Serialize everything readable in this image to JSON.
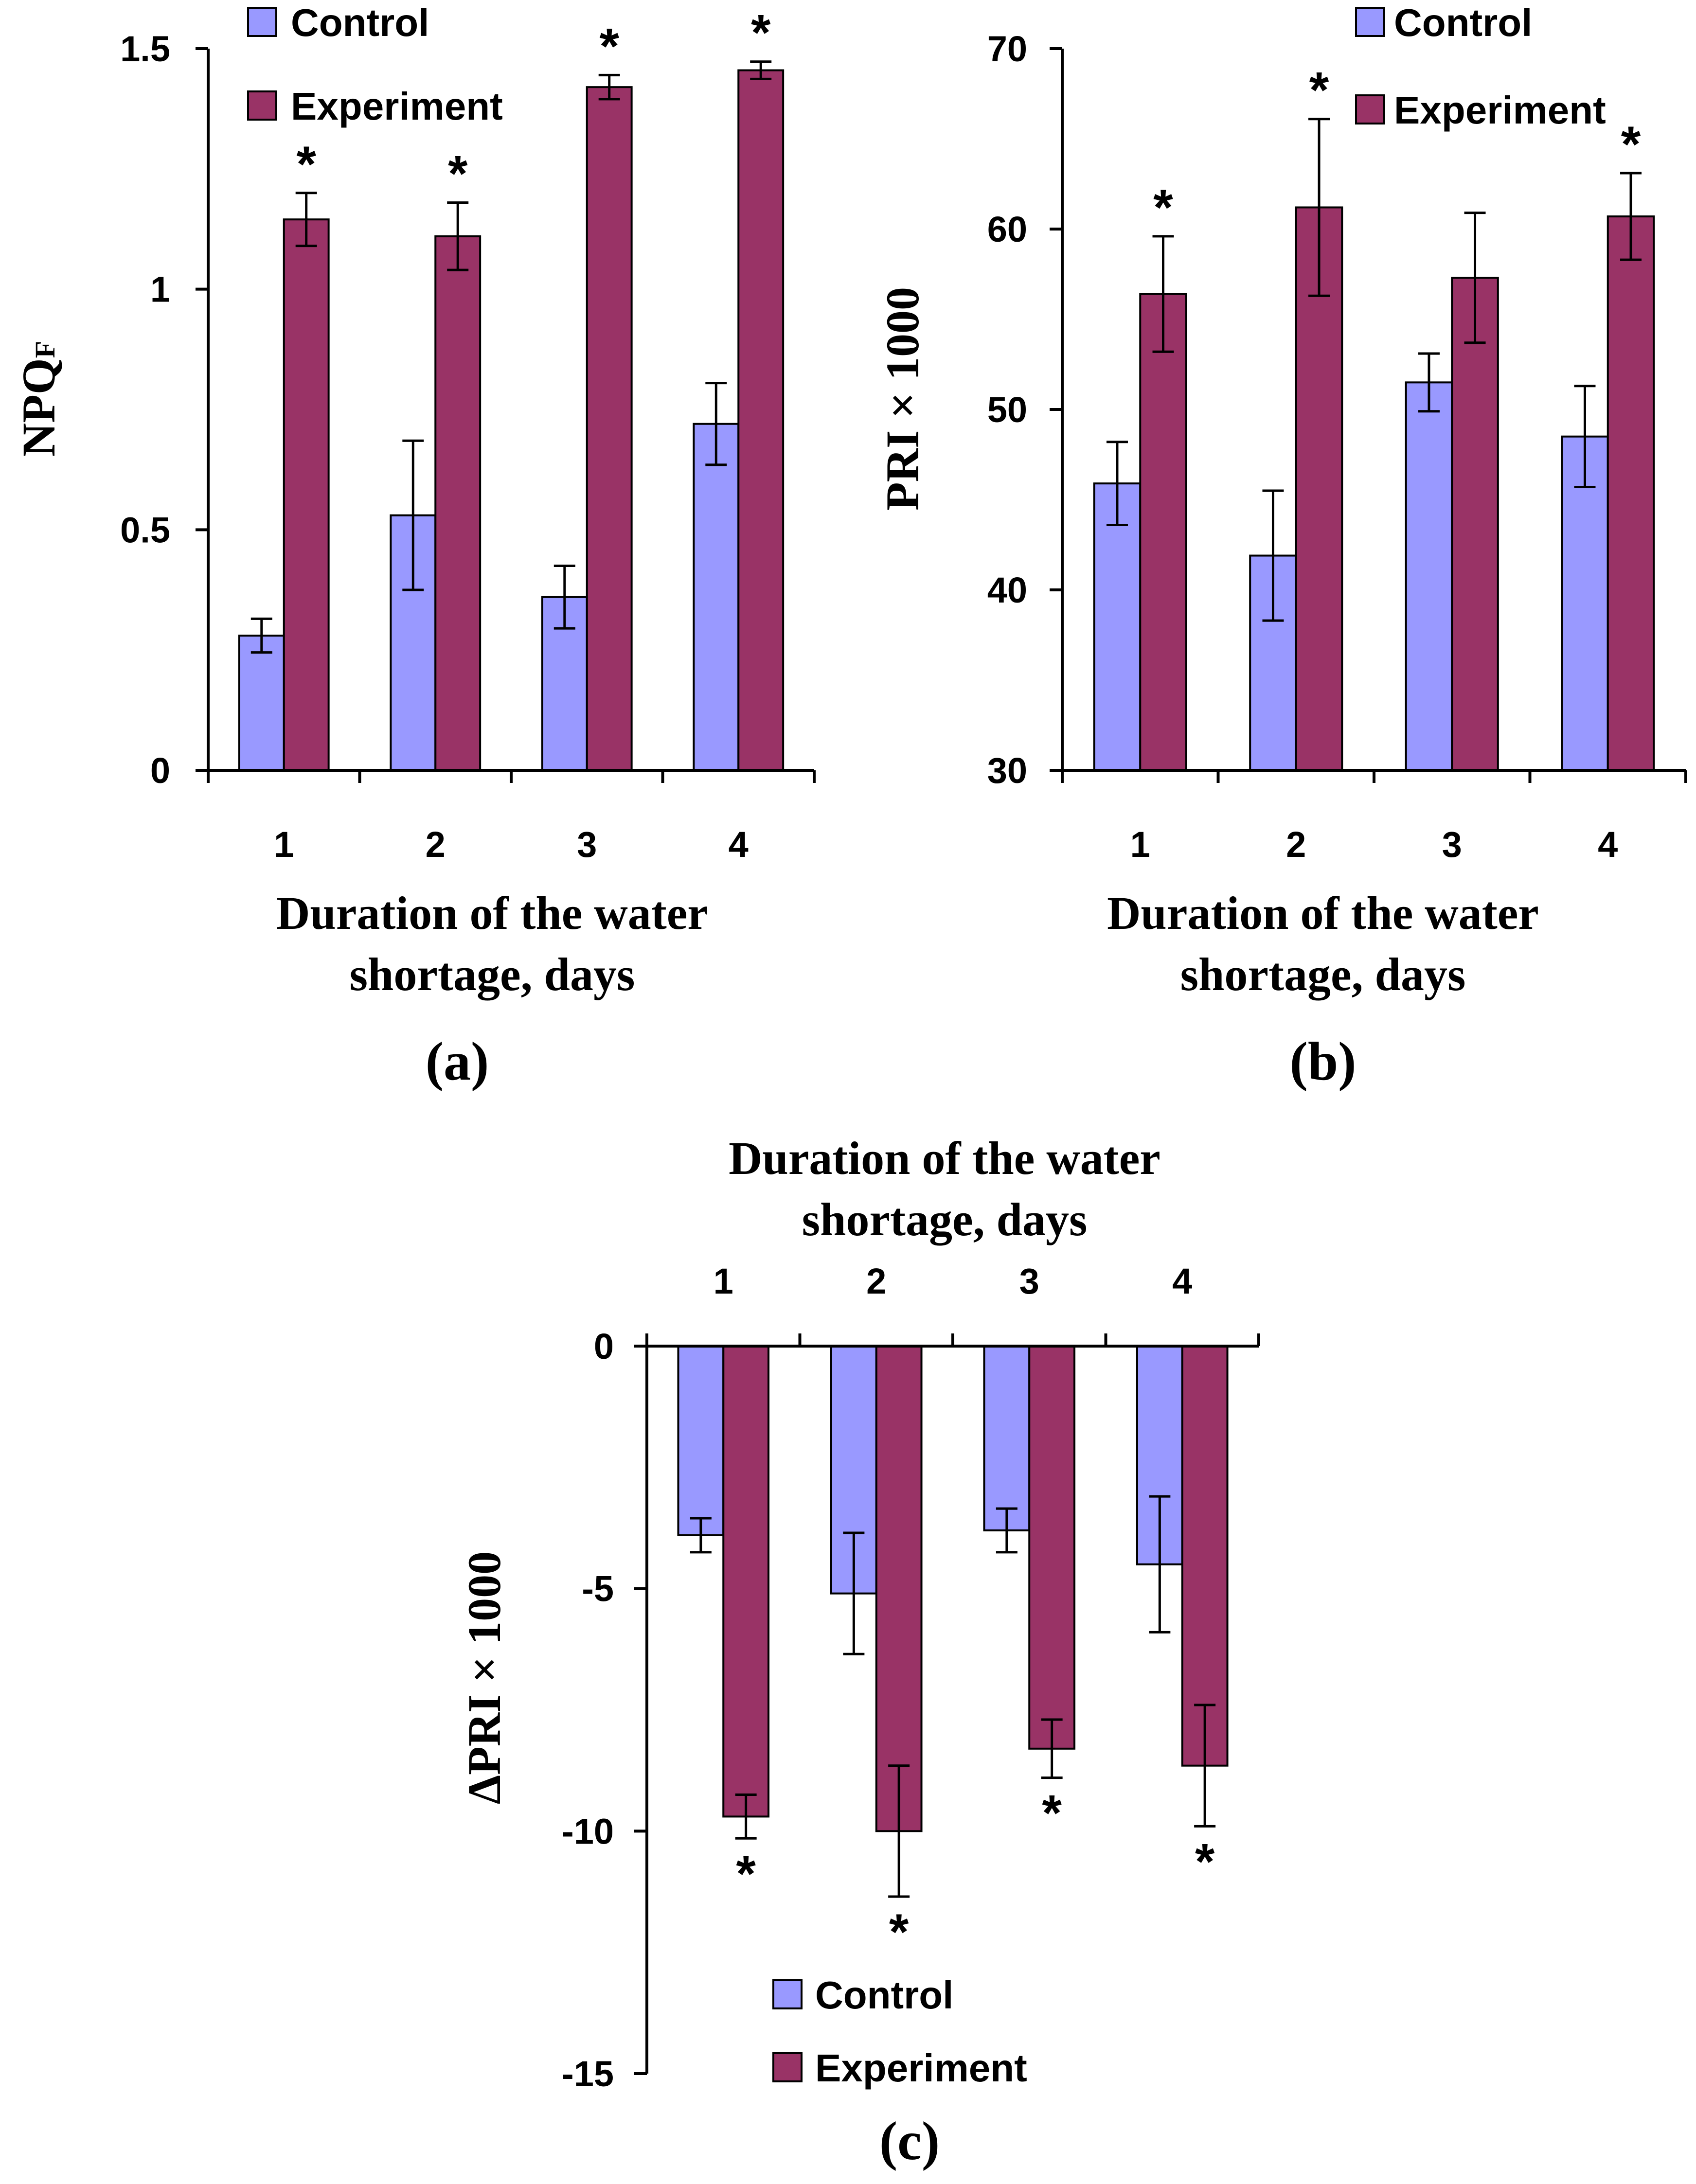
{
  "chart_data": [
    {
      "panel_label": "(a)",
      "type": "bar",
      "ylabel_main": "NPQ",
      "ylabel_sub": "F",
      "xlabel_line1": "Duration of the water",
      "xlabel_line2": "shortage, days",
      "categories": [
        "1",
        "2",
        "3",
        "4"
      ],
      "ylim": [
        0,
        1.5
      ],
      "yticks": [
        0,
        0.5,
        1,
        1.5
      ],
      "ytick_labels": [
        "0",
        "0.5",
        "1",
        "1.5"
      ],
      "legend_position": "top-left",
      "series": [
        {
          "name": "Control",
          "color": "#9999FF",
          "values": [
            0.28,
            0.53,
            0.36,
            0.72
          ],
          "errors": [
            0.035,
            0.155,
            0.065,
            0.085
          ]
        },
        {
          "name": "Experiment",
          "color": "#993366",
          "values": [
            1.145,
            1.11,
            1.42,
            1.455
          ],
          "errors": [
            0.055,
            0.07,
            0.025,
            0.018
          ]
        }
      ],
      "significance": [
        "*",
        "*",
        "*",
        "*"
      ]
    },
    {
      "panel_label": "(b)",
      "type": "bar",
      "ylabel": "PRI × 1000",
      "xlabel_line1": "Duration of the water",
      "xlabel_line2": "shortage, days",
      "categories": [
        "1",
        "2",
        "3",
        "4"
      ],
      "ylim": [
        30,
        70
      ],
      "yticks": [
        30,
        40,
        50,
        60,
        70
      ],
      "ytick_labels": [
        "30",
        "40",
        "50",
        "60",
        "70"
      ],
      "legend_position": "top-right",
      "series": [
        {
          "name": "Control",
          "color": "#9999FF",
          "values": [
            45.9,
            41.9,
            51.5,
            48.5
          ],
          "errors": [
            2.3,
            3.6,
            1.6,
            2.8
          ]
        },
        {
          "name": "Experiment",
          "color": "#993366",
          "values": [
            56.4,
            61.2,
            57.3,
            60.7
          ],
          "errors": [
            3.2,
            4.9,
            3.6,
            2.4
          ]
        }
      ],
      "significance": [
        "*",
        "*",
        "",
        "*"
      ]
    },
    {
      "panel_label": "(c)",
      "type": "bar",
      "ylabel": "ΔPRI × 1000",
      "xlabel_line1": "Duration of the water",
      "xlabel_line2": "shortage, days",
      "categories": [
        "1",
        "2",
        "3",
        "4"
      ],
      "ylim": [
        -15,
        0
      ],
      "yticks": [
        -15,
        -10,
        -5,
        0
      ],
      "ytick_labels": [
        "-15",
        "-10",
        "-5",
        "0"
      ],
      "legend_position": "bottom",
      "series": [
        {
          "name": "Control",
          "color": "#9999FF",
          "values": [
            -3.9,
            -5.1,
            -3.8,
            -4.5
          ],
          "errors": [
            0.35,
            1.25,
            0.45,
            1.4
          ]
        },
        {
          "name": "Experiment",
          "color": "#993366",
          "values": [
            -9.7,
            -10.0,
            -8.3,
            -8.65
          ],
          "errors": [
            0.45,
            1.35,
            0.6,
            1.25
          ]
        }
      ],
      "significance": [
        "*",
        "*",
        "*",
        "*"
      ]
    }
  ]
}
